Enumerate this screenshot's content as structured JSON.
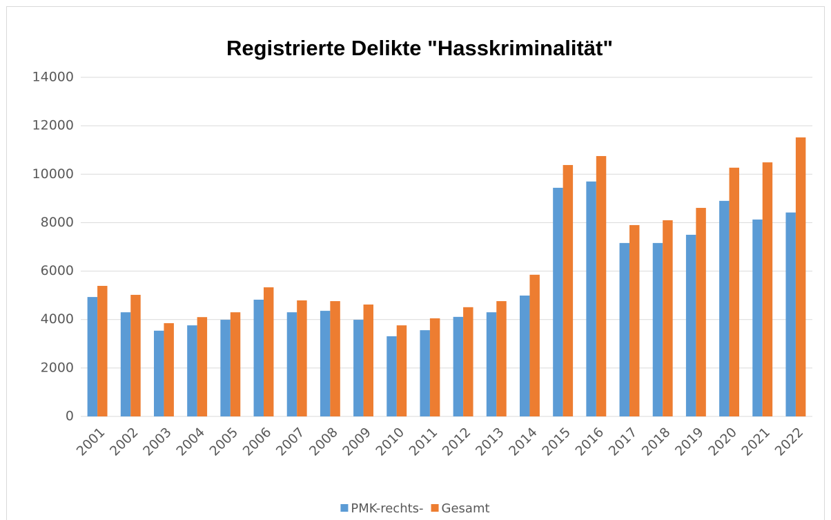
{
  "chart_data": {
    "type": "bar",
    "title": "Registrierte Delikte \"Hasskriminalität\"",
    "categories": [
      "2001",
      "2002",
      "2003",
      "2004",
      "2005",
      "2006",
      "2007",
      "2008",
      "2009",
      "2010",
      "2011",
      "2012",
      "2013",
      "2014",
      "2015",
      "2016",
      "2017",
      "2018",
      "2019",
      "2020",
      "2021",
      "2022"
    ],
    "series": [
      {
        "name": "PMK-rechts-",
        "color": "#5b9bd5",
        "values": [
          4930,
          4300,
          3540,
          3760,
          3990,
          4820,
          4300,
          4360,
          3990,
          3310,
          3560,
          4110,
          4300,
          4990,
          9440,
          9700,
          7160,
          7160,
          7500,
          8900,
          8130,
          8420
        ]
      },
      {
        "name": "Gesamt",
        "color": "#ed7d31",
        "values": [
          5390,
          5020,
          3850,
          4100,
          4300,
          5330,
          4790,
          4760,
          4620,
          3760,
          4050,
          4510,
          4760,
          5850,
          10380,
          10750,
          7900,
          8100,
          8610,
          10270,
          10490,
          11520
        ]
      }
    ],
    "ylim": [
      0,
      14000
    ],
    "yticks": [
      0,
      2000,
      4000,
      6000,
      8000,
      10000,
      12000,
      14000
    ],
    "grid": true,
    "legend": "bottom"
  }
}
